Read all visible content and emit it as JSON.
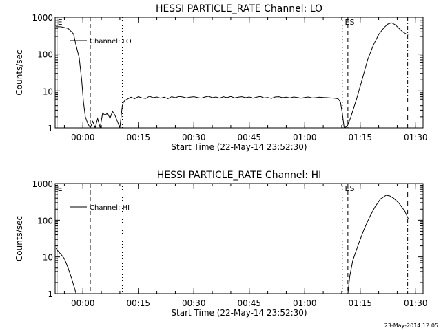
{
  "footer_timestamp": "23-May-2014 12:05",
  "chart_data": [
    {
      "type": "line",
      "title": "HESSI PARTICLE_RATE Channel: LO",
      "xlabel": "Start Time (22-May-14 23:52:30)",
      "ylabel": "Counts/sec",
      "yscale": "log",
      "ylim": [
        1,
        1000
      ],
      "xlim": [
        "23:52:30",
        "01:32:00"
      ],
      "x_ticks": [
        "00:00",
        "00:15",
        "00:30",
        "00:45",
        "01:00",
        "01:15",
        "01:30"
      ],
      "y_ticks": [
        "1",
        "10",
        "100",
        "1000"
      ],
      "legend": {
        "position": "top-left",
        "entries": [
          "Channel: LO"
        ]
      },
      "markers": [
        {
          "label": "E",
          "time": "23:53:00",
          "style": "solid"
        },
        {
          "label": "",
          "time": "00:02:00",
          "style": "dashed"
        },
        {
          "label": "",
          "time": "00:10:40",
          "style": "dotted"
        },
        {
          "label": "",
          "time": "01:10:10",
          "style": "dotted"
        },
        {
          "label": "ES",
          "time": "01:10:40",
          "style": "none"
        },
        {
          "label": "",
          "time": "01:11:40",
          "style": "dashed"
        },
        {
          "label": "",
          "time": "01:27:50",
          "style": "dash-dot"
        }
      ],
      "series": [
        {
          "name": "Channel: LO",
          "time": [
            "23:52:40",
            "23:54:00",
            "23:56:00",
            "23:57:30",
            "23:58:00",
            "23:59:00",
            "23:59:40",
            "00:00:10",
            "00:00:40",
            "00:01:20",
            "00:02:00",
            "00:02:40",
            "00:03:20",
            "00:04:00",
            "00:04:40",
            "00:05:20",
            "00:06:00",
            "00:06:40",
            "00:07:20",
            "00:08:00",
            "00:08:40",
            "00:09:20",
            "00:10:00",
            "00:10:20",
            "00:10:40",
            "00:11:00",
            "00:11:20",
            "00:12:00",
            "00:13:00",
            "00:14:00",
            "00:15:00",
            "00:16:00",
            "00:17:00",
            "00:18:00",
            "00:19:00",
            "00:20:00",
            "00:21:00",
            "00:22:00",
            "00:23:00",
            "00:24:00",
            "00:25:00",
            "00:26:00",
            "00:27:00",
            "00:28:00",
            "00:29:00",
            "00:30:00",
            "00:31:00",
            "00:32:00",
            "00:33:00",
            "00:34:00",
            "00:35:00",
            "00:36:00",
            "00:37:00",
            "00:38:00",
            "00:39:00",
            "00:40:00",
            "00:41:00",
            "00:42:00",
            "00:43:00",
            "00:44:00",
            "00:45:00",
            "00:46:00",
            "00:47:00",
            "00:48:00",
            "00:49:00",
            "00:50:00",
            "00:51:00",
            "00:52:00",
            "00:53:00",
            "00:54:00",
            "00:55:00",
            "00:56:00",
            "00:57:00",
            "00:58:00",
            "00:59:00",
            "01:00:00",
            "01:01:00",
            "01:02:00",
            "01:03:00",
            "01:04:00",
            "01:05:00",
            "01:06:00",
            "01:07:00",
            "01:08:00",
            "01:09:00",
            "01:09:40",
            "01:10:10",
            "01:10:40",
            "01:11:30",
            "01:12:30",
            "01:14:00",
            "01:15:30",
            "01:17:00",
            "01:18:30",
            "01:20:00",
            "01:21:30",
            "01:22:30",
            "01:23:30",
            "01:24:30",
            "01:25:30",
            "01:26:30",
            "01:27:30",
            "01:28:00"
          ],
          "values": [
            550,
            550,
            500,
            350,
            200,
            80,
            20,
            5,
            2,
            1.3,
            1,
            1.5,
            1,
            1.8,
            1,
            2.5,
            2.2,
            2.5,
            1.8,
            2.8,
            2.2,
            1.5,
            1,
            2,
            4,
            5,
            5.5,
            6,
            6.8,
            6.2,
            7,
            6.5,
            6.3,
            7.2,
            6.6,
            6.9,
            6.4,
            6.8,
            6.2,
            7,
            6.6,
            7.1,
            6.9,
            6.5,
            6.8,
            7,
            6.7,
            6.4,
            6.9,
            7.2,
            6.6,
            6.9,
            6.4,
            7,
            6.6,
            7.1,
            6.5,
            6.8,
            7,
            6.6,
            6.9,
            6.4,
            6.8,
            7.1,
            6.5,
            6.7,
            6.3,
            6.9,
            7,
            6.6,
            6.8,
            6.5,
            6.9,
            6.7,
            6.4,
            6.7,
            6.9,
            6.5,
            6.6,
            6.8,
            6.7,
            6.6,
            6.5,
            6.4,
            6.2,
            5,
            2.5,
            1,
            1.1,
            2,
            6,
            20,
            70,
            170,
            340,
            530,
            650,
            700,
            620,
            500,
            400,
            350,
            340
          ]
        }
      ]
    },
    {
      "type": "line",
      "title": "HESSI PARTICLE_RATE Channel: HI",
      "xlabel": "Start Time (22-May-14 23:52:30)",
      "ylabel": "Counts/sec",
      "yscale": "log",
      "ylim": [
        1,
        1000
      ],
      "xlim": [
        "23:52:30",
        "01:32:00"
      ],
      "x_ticks": [
        "00:00",
        "00:15",
        "00:30",
        "00:45",
        "01:00",
        "01:15",
        "01:30"
      ],
      "y_ticks": [
        "1",
        "10",
        "100",
        "1000"
      ],
      "legend": {
        "position": "top-left",
        "entries": [
          "Channel: HI"
        ]
      },
      "markers": [
        {
          "label": "E",
          "time": "23:53:00",
          "style": "solid"
        },
        {
          "label": "",
          "time": "00:02:00",
          "style": "dashed"
        },
        {
          "label": "",
          "time": "00:10:40",
          "style": "dotted"
        },
        {
          "label": "",
          "time": "01:10:10",
          "style": "dotted"
        },
        {
          "label": "ES",
          "time": "01:10:40",
          "style": "none"
        },
        {
          "label": "",
          "time": "01:11:40",
          "style": "dashed"
        },
        {
          "label": "",
          "time": "01:27:50",
          "style": "dash-dot"
        }
      ],
      "series": [
        {
          "name": "Channel: HI",
          "time": [
            "23:52:40",
            "23:53:20",
            "23:54:00",
            "23:55:00",
            "23:56:00",
            "23:57:00",
            "23:57:40",
            "23:58:10"
          ],
          "values": [
            18,
            14,
            12,
            9,
            5,
            2.5,
            1.5,
            1
          ],
          "segments": [
            {
              "time": [
                "01:11:40",
                "01:12:10",
                "01:13:00",
                "01:14:30",
                "01:16:00",
                "01:17:30",
                "01:19:00",
                "01:20:30",
                "01:22:00",
                "01:23:00",
                "01:24:00",
                "01:25:30",
                "01:27:00",
                "01:28:00"
              ],
              "values": [
                1,
                3,
                8,
                22,
                55,
                120,
                230,
                380,
                480,
                460,
                400,
                290,
                180,
                110
              ]
            }
          ]
        }
      ]
    }
  ]
}
